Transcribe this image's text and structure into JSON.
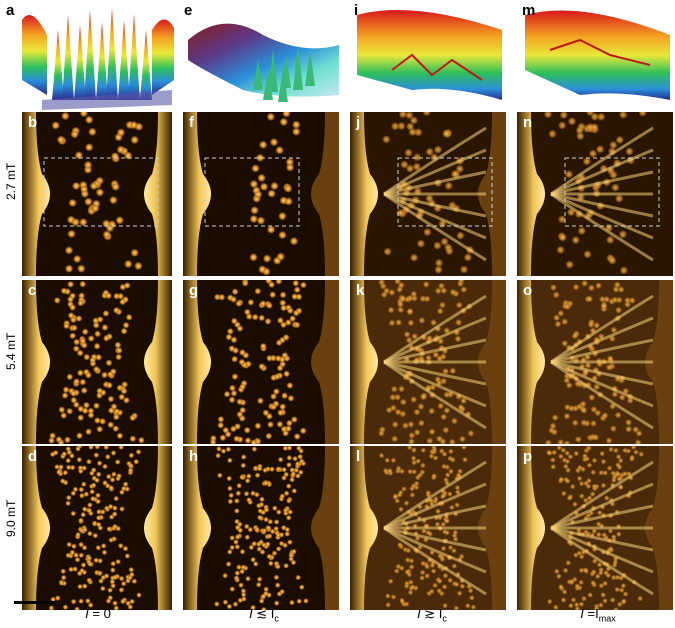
{
  "panel_letters": {
    "top": [
      "a",
      "e",
      "i",
      "m"
    ],
    "row1": [
      "b",
      "f",
      "j",
      "n"
    ],
    "row2": [
      "c",
      "g",
      "k",
      "o"
    ],
    "row3": [
      "d",
      "h",
      "l",
      "p"
    ]
  },
  "row_labels": [
    "2.7 mT",
    "5.4 mT",
    "9.0 mT"
  ],
  "column_labels": [
    {
      "var": "I",
      "rel": " = 0",
      "sub": ""
    },
    {
      "var": "I",
      "rel": " ≲ I",
      "sub": "c"
    },
    {
      "var": "I",
      "rel": " ≳ I",
      "sub": "c"
    },
    {
      "var": "I",
      "rel": " =I",
      "sub": "max"
    }
  ],
  "colors": {
    "background_dark": "#1a0d00",
    "vortex_glow": "#e8a83a",
    "edge_glow": "#ffe58a",
    "frame_white": "#ffffff"
  }
}
